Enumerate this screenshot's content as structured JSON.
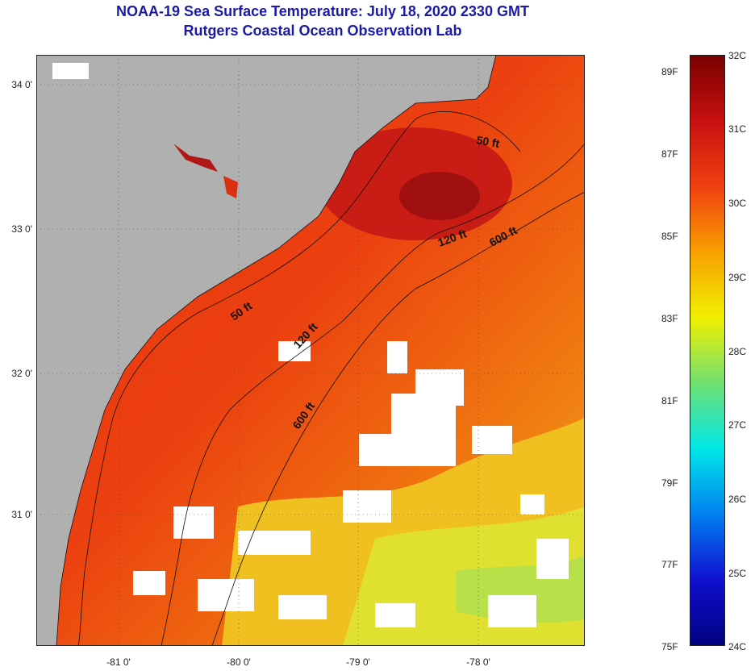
{
  "header": {
    "title": "NOAA-19 Sea Surface Temperature:  July 18, 2020 2330 GMT",
    "subtitle": "Rutgers Coastal Ocean Observation Lab"
  },
  "map": {
    "latitude_labels": [
      "34 0'",
      "33 0'",
      "32 0'",
      "31 0'"
    ],
    "longitude_labels": [
      "-81 0'",
      "-80 0'",
      "-79 0'",
      "-78 0'"
    ],
    "contour_labels": [
      "50 ft",
      "120 ft",
      "600 ft",
      "50 ft",
      "120 ft",
      "600 ft"
    ],
    "colors": {
      "land": "#b0b0b0",
      "cloud": "#ffffff",
      "ocean_warm": "#e62b10",
      "ocean_hot": "#b01010",
      "ocean_mid": "#f06a10",
      "ocean_cool": "#e8e020"
    }
  },
  "colorbar": {
    "celsius": [
      "32C",
      "31C",
      "30C",
      "29C",
      "28C",
      "27C",
      "26C",
      "25C",
      "24C"
    ],
    "fahrenheit": [
      "89F",
      "87F",
      "85F",
      "83F",
      "81F",
      "79F",
      "77F",
      "75F"
    ],
    "gradient": [
      "#7a0000",
      "#c81010",
      "#f04010",
      "#f8a000",
      "#f0f000",
      "#70e070",
      "#00e8e8",
      "#0080f0",
      "#1010d0",
      "#000080"
    ]
  }
}
